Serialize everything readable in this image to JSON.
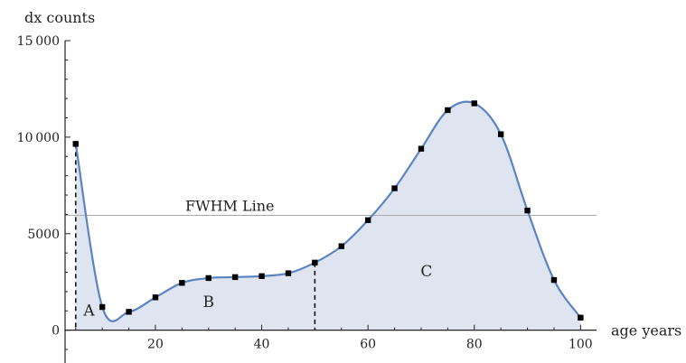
{
  "chart_data": {
    "type": "line",
    "xlabel": "age years",
    "ylabel": "dx counts",
    "xlim": [
      3,
      103
    ],
    "ylim": [
      -1700,
      15000
    ],
    "x_ticks": [
      20,
      40,
      60,
      80,
      100
    ],
    "y_ticks": [
      0,
      5000,
      10000,
      15000
    ],
    "x_tick_labels": [
      "20",
      "40",
      "60",
      "80",
      "100"
    ],
    "y_tick_labels": [
      "0",
      "5000",
      "10 000",
      "15 000"
    ],
    "series": [
      {
        "x": [
          5,
          10,
          15,
          20,
          25,
          30,
          35,
          40,
          45,
          50,
          55,
          60,
          65,
          70,
          75,
          80,
          85,
          90,
          95,
          100
        ],
        "y": [
          9650,
          1200,
          950,
          1700,
          2450,
          2700,
          2750,
          2800,
          2950,
          3500,
          4350,
          5700,
          7350,
          9400,
          11400,
          11750,
          10150,
          6200,
          2600,
          650
        ]
      }
    ],
    "reference_line": {
      "label": "FWHM Line",
      "y": 5950
    },
    "dividers_x": [
      5,
      50
    ],
    "regions": [
      {
        "label": "A",
        "x": 7.5,
        "y": 750
      },
      {
        "label": "B",
        "x": 30,
        "y": 1200
      },
      {
        "label": "C",
        "x": 71,
        "y": 2800
      }
    ],
    "colors": {
      "line": "#5b83c0",
      "fill": "#dfe5f0",
      "marker": "#000000",
      "ref": "#aaaaaa"
    },
    "grid": false,
    "legend": "none"
  }
}
